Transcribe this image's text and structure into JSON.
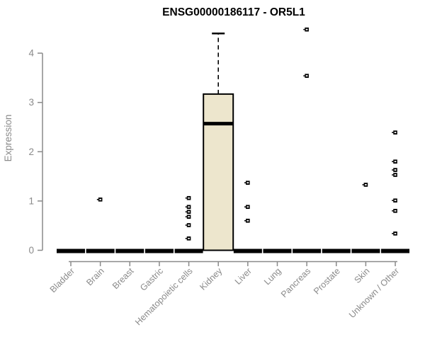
{
  "chart_data": {
    "type": "boxplot",
    "title": "ENSG00000186117 - OR5L1",
    "xlabel": "",
    "ylabel": "Expression",
    "yticks": [
      0,
      1,
      2,
      3,
      4
    ],
    "ylim": [
      0,
      4.6
    ],
    "grid": false,
    "legend": "none",
    "categories": [
      "Bladder",
      "Brain",
      "Breast",
      "Gastric",
      "Hematopoietic cells",
      "Kidney",
      "Liver",
      "Lung",
      "Pancreas",
      "Prostate",
      "Skin",
      "Unknown / Other"
    ],
    "series": [
      {
        "category": "Bladder",
        "low": 0,
        "q1": 0,
        "median": 0,
        "q3": 0,
        "high": 0,
        "outliers": []
      },
      {
        "category": "Brain",
        "low": 0,
        "q1": 0,
        "median": 0,
        "q3": 0,
        "high": 0,
        "outliers": [
          1.03
        ]
      },
      {
        "category": "Breast",
        "low": 0,
        "q1": 0,
        "median": 0,
        "q3": 0,
        "high": 0,
        "outliers": []
      },
      {
        "category": "Gastric",
        "low": 0,
        "q1": 0,
        "median": 0,
        "q3": 0,
        "high": 0,
        "outliers": []
      },
      {
        "category": "Hematopoietic cells",
        "low": 0,
        "q1": 0,
        "median": 0,
        "q3": 0,
        "high": 0,
        "outliers": [
          1.06,
          0.88,
          0.78,
          0.68,
          0.51,
          0.24
        ]
      },
      {
        "category": "Kidney",
        "low": 0,
        "q1": 0,
        "median": 2.57,
        "q3": 3.17,
        "high": 4.4,
        "outliers": []
      },
      {
        "category": "Liver",
        "low": 0,
        "q1": 0,
        "median": 0,
        "q3": 0,
        "high": 0,
        "outliers": [
          1.37,
          0.88,
          0.6
        ]
      },
      {
        "category": "Lung",
        "low": 0,
        "q1": 0,
        "median": 0,
        "q3": 0,
        "high": 0,
        "outliers": []
      },
      {
        "category": "Pancreas",
        "low": 0,
        "q1": 0,
        "median": 0,
        "q3": 0,
        "high": 0,
        "outliers": [
          4.48,
          3.54
        ]
      },
      {
        "category": "Prostate",
        "low": 0,
        "q1": 0,
        "median": 0,
        "q3": 0,
        "high": 0,
        "outliers": []
      },
      {
        "category": "Skin",
        "low": 0,
        "q1": 0,
        "median": 0,
        "q3": 0,
        "high": 0,
        "outliers": [
          1.33
        ]
      },
      {
        "category": "Unknown / Other",
        "low": 0,
        "q1": 0,
        "median": 0,
        "q3": 0,
        "high": 0,
        "outliers": [
          2.39,
          1.8,
          1.63,
          1.53,
          1.01,
          0.8,
          0.34
        ]
      }
    ],
    "colors": {
      "box_fill": "#EDE6CD",
      "box_border": "#000000",
      "median": "#000000",
      "flat_bar": "#000000",
      "axis": "#8A8A8A",
      "tick_label": "#8A8A8A",
      "title": "#000000",
      "background": "#FFFFFF"
    }
  }
}
